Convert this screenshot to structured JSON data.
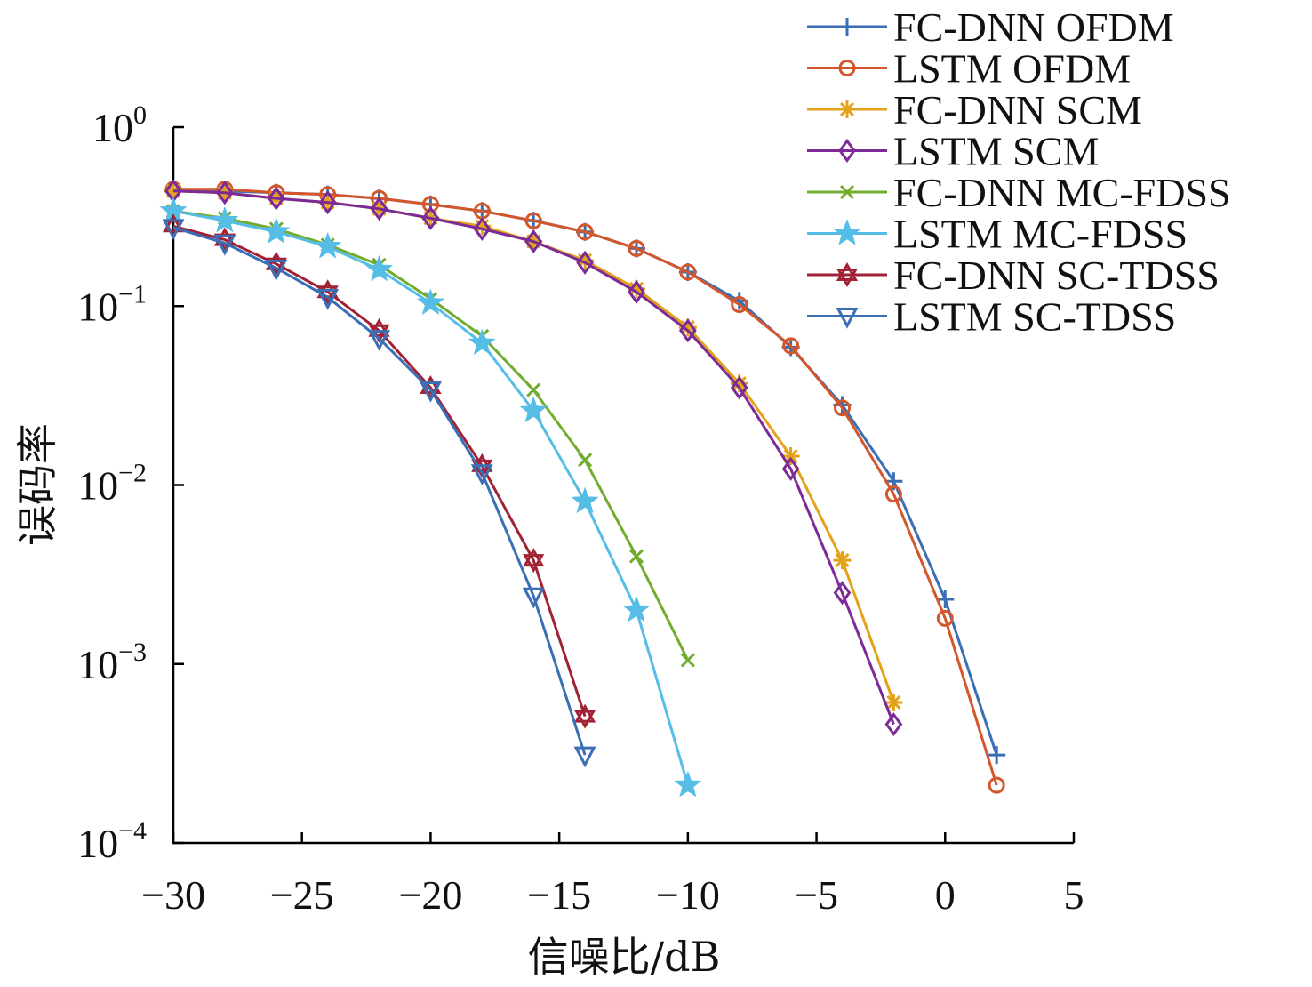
{
  "chart_data": {
    "type": "line",
    "xlabel": "信噪比/dB",
    "ylabel": "误码率",
    "xlim": [
      -30,
      5
    ],
    "ylim": [
      0.0001,
      1
    ],
    "yscale": "log",
    "grid": false,
    "legend": "top-right",
    "xticks": [
      -30,
      -25,
      -20,
      -15,
      -10,
      -5,
      0,
      5
    ],
    "xtick_labels": [
      "−30",
      "−25",
      "−20",
      "−15",
      "−10",
      "−5",
      "0",
      "5"
    ],
    "yticks": [
      {
        "value": 1,
        "base": "10",
        "exp": "0"
      },
      {
        "value": 0.1,
        "base": "10",
        "exp": "−1"
      },
      {
        "value": 0.01,
        "base": "10",
        "exp": "−2"
      },
      {
        "value": 0.001,
        "base": "10",
        "exp": "−3"
      },
      {
        "value": 0.0001,
        "base": "10",
        "exp": "−4"
      }
    ],
    "series": [
      {
        "name": "FC-DNN OFDM",
        "color": "#3a6fb5",
        "marker": "plus",
        "x": [
          -30,
          -28,
          -26,
          -24,
          -22,
          -20,
          -18,
          -16,
          -14,
          -12,
          -10,
          -8,
          -6,
          -4,
          -2,
          0,
          2
        ],
        "y": [
          0.44,
          0.44,
          0.43,
          0.42,
          0.4,
          0.37,
          0.34,
          0.3,
          0.26,
          0.21,
          0.155,
          0.107,
          0.059,
          0.028,
          0.0105,
          0.0023,
          0.00031
        ]
      },
      {
        "name": "LSTM OFDM",
        "color": "#d4562b",
        "marker": "circle",
        "x": [
          -30,
          -28,
          -26,
          -24,
          -22,
          -20,
          -18,
          -16,
          -14,
          -12,
          -10,
          -8,
          -6,
          -4,
          -2,
          0,
          2
        ],
        "y": [
          0.45,
          0.45,
          0.43,
          0.42,
          0.4,
          0.37,
          0.34,
          0.3,
          0.26,
          0.21,
          0.155,
          0.102,
          0.06,
          0.027,
          0.0089,
          0.0018,
          0.00021
        ]
      },
      {
        "name": "FC-DNN SCM",
        "color": "#e3a21a",
        "marker": "asterisk",
        "x": [
          -30,
          -28,
          -26,
          -24,
          -22,
          -20,
          -18,
          -16,
          -14,
          -12,
          -10,
          -8,
          -6,
          -4,
          -2
        ],
        "y": [
          0.44,
          0.43,
          0.4,
          0.38,
          0.35,
          0.31,
          0.28,
          0.23,
          0.18,
          0.125,
          0.076,
          0.037,
          0.0145,
          0.0038,
          0.00061
        ]
      },
      {
        "name": "LSTM SCM",
        "color": "#7b2a97",
        "marker": "diamond",
        "x": [
          -30,
          -28,
          -26,
          -24,
          -22,
          -20,
          -18,
          -16,
          -14,
          -12,
          -10,
          -8,
          -6,
          -4,
          -2
        ],
        "y": [
          0.44,
          0.43,
          0.4,
          0.38,
          0.35,
          0.31,
          0.27,
          0.23,
          0.175,
          0.12,
          0.073,
          0.035,
          0.0123,
          0.0025,
          0.00046
        ]
      },
      {
        "name": "FC-DNN MC-FDSS",
        "color": "#72ac2f",
        "marker": "x",
        "x": [
          -30,
          -28,
          -26,
          -24,
          -22,
          -20,
          -18,
          -16,
          -14,
          -12,
          -10
        ],
        "y": [
          0.34,
          0.31,
          0.27,
          0.22,
          0.17,
          0.11,
          0.068,
          0.034,
          0.0138,
          0.004,
          0.00105
        ]
      },
      {
        "name": "LSTM MC-FDSS",
        "color": "#55bde6",
        "marker": "star",
        "x": [
          -30,
          -28,
          -26,
          -24,
          -22,
          -20,
          -18,
          -16,
          -14,
          -12,
          -10
        ],
        "y": [
          0.34,
          0.3,
          0.26,
          0.215,
          0.16,
          0.104,
          0.062,
          0.026,
          0.0081,
          0.002,
          0.00021
        ]
      },
      {
        "name": "FC-DNN SC-TDSS",
        "color": "#a12234",
        "marker": "hexagram",
        "x": [
          -30,
          -28,
          -26,
          -24,
          -22,
          -20,
          -18,
          -16,
          -14
        ],
        "y": [
          0.28,
          0.235,
          0.172,
          0.12,
          0.073,
          0.035,
          0.0128,
          0.0038,
          0.00051
        ]
      },
      {
        "name": "LSTM SC-TDSS",
        "color": "#3a6fb5",
        "marker": "triangle-down",
        "x": [
          -30,
          -28,
          -26,
          -24,
          -22,
          -20,
          -18,
          -16,
          -14
        ],
        "y": [
          0.275,
          0.225,
          0.163,
          0.112,
          0.066,
          0.034,
          0.0117,
          0.0024,
          0.00031
        ]
      }
    ]
  }
}
